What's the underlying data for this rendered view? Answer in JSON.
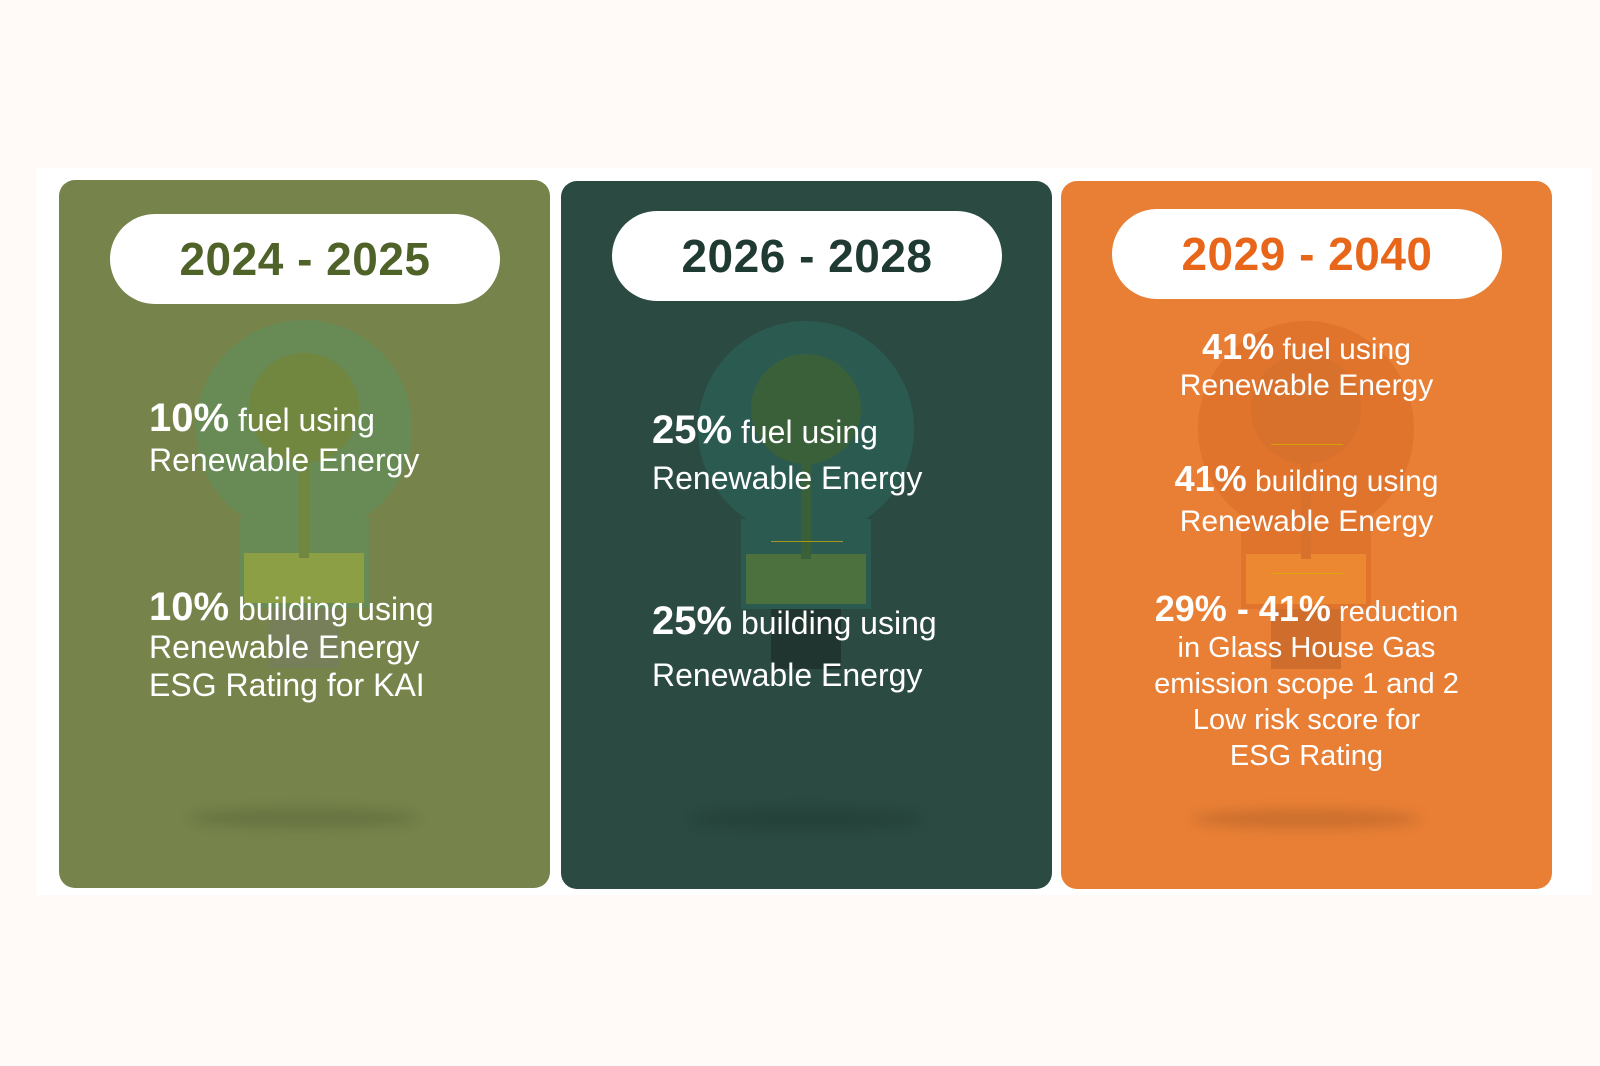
{
  "colors": {
    "card1": "#76844b",
    "card2": "#2a4a42",
    "card3": "#e97f35"
  },
  "cards": [
    {
      "period": "2024 - 2025",
      "items": [
        {
          "highlight": "10%",
          "text": " fuel using",
          "line2": "Renewable Energy"
        },
        {
          "highlight": "10%",
          "text": " building using",
          "line2": "Renewable Energy",
          "line3": "ESG Rating for KAI"
        }
      ]
    },
    {
      "period": "2026 - 2028",
      "items": [
        {
          "highlight": "25%",
          "text": " fuel using",
          "line2": "Renewable Energy"
        },
        {
          "highlight": "25%",
          "text": " building using",
          "line2": "Renewable Energy"
        }
      ]
    },
    {
      "period": "2029 - 2040",
      "items": [
        {
          "highlight": "41%",
          "text": " fuel using",
          "line2": "Renewable Energy"
        },
        {
          "highlight": "41%",
          "text": " building using",
          "line2": "Renewable Energy"
        },
        {
          "highlight": "29% - 41%",
          "text": " reduction",
          "line2": "in Glass House Gas",
          "line3": "emission scope 1 and 2",
          "line4": "Low risk score for",
          "line5": "ESG Rating"
        }
      ]
    }
  ]
}
